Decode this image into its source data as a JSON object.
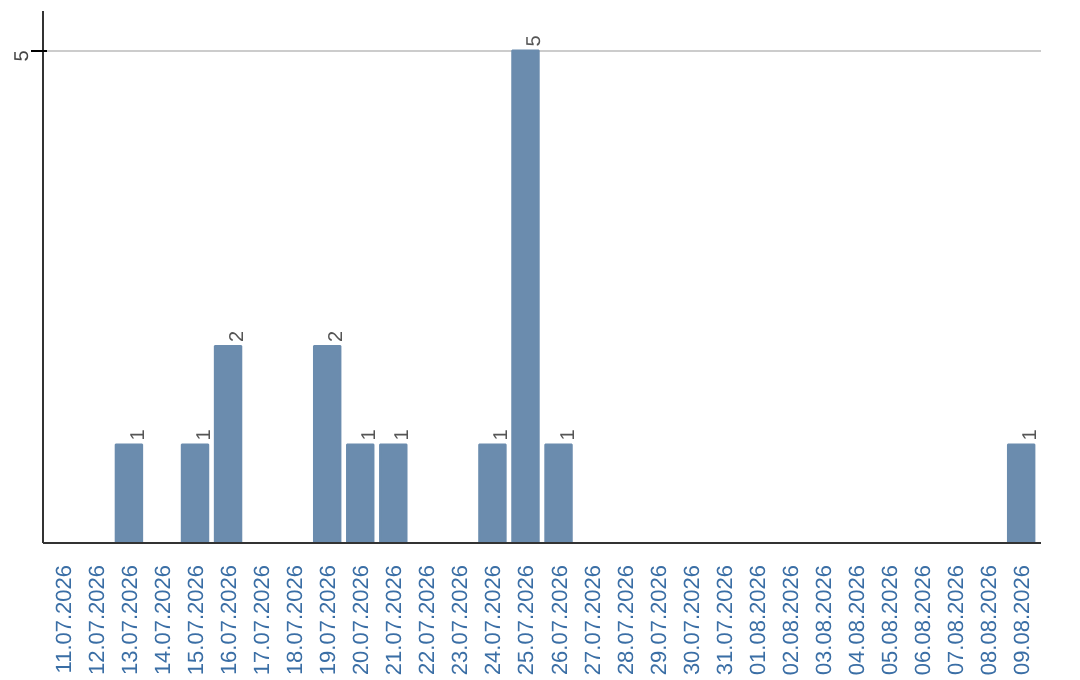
{
  "chart_data": {
    "type": "bar",
    "categories": [
      "11.07.2026",
      "12.07.2026",
      "13.07.2026",
      "14.07.2026",
      "15.07.2026",
      "16.07.2026",
      "17.07.2026",
      "18.07.2026",
      "19.07.2026",
      "20.07.2026",
      "21.07.2026",
      "22.07.2026",
      "23.07.2026",
      "24.07.2026",
      "25.07.2026",
      "26.07.2026",
      "27.07.2026",
      "28.07.2026",
      "29.07.2026",
      "30.07.2026",
      "31.07.2026",
      "01.08.2026",
      "02.08.2026",
      "03.08.2026",
      "04.08.2026",
      "05.08.2026",
      "06.08.2026",
      "07.08.2026",
      "08.08.2026",
      "09.08.2026"
    ],
    "values": [
      0,
      0,
      1,
      0,
      1,
      2,
      0,
      0,
      2,
      1,
      1,
      0,
      0,
      1,
      5,
      1,
      0,
      0,
      0,
      0,
      0,
      0,
      0,
      0,
      0,
      0,
      0,
      0,
      0,
      1
    ],
    "value_labels": [
      null,
      null,
      "1",
      null,
      "1",
      "2",
      null,
      null,
      "2",
      "1",
      "1",
      null,
      null,
      "1",
      "5",
      "1",
      null,
      null,
      null,
      null,
      null,
      null,
      null,
      null,
      null,
      null,
      null,
      null,
      null,
      "1"
    ],
    "color": "#6b8cae",
    "ylim": [
      0,
      5.4
    ],
    "yticks": [
      5
    ],
    "grid": "y"
  }
}
